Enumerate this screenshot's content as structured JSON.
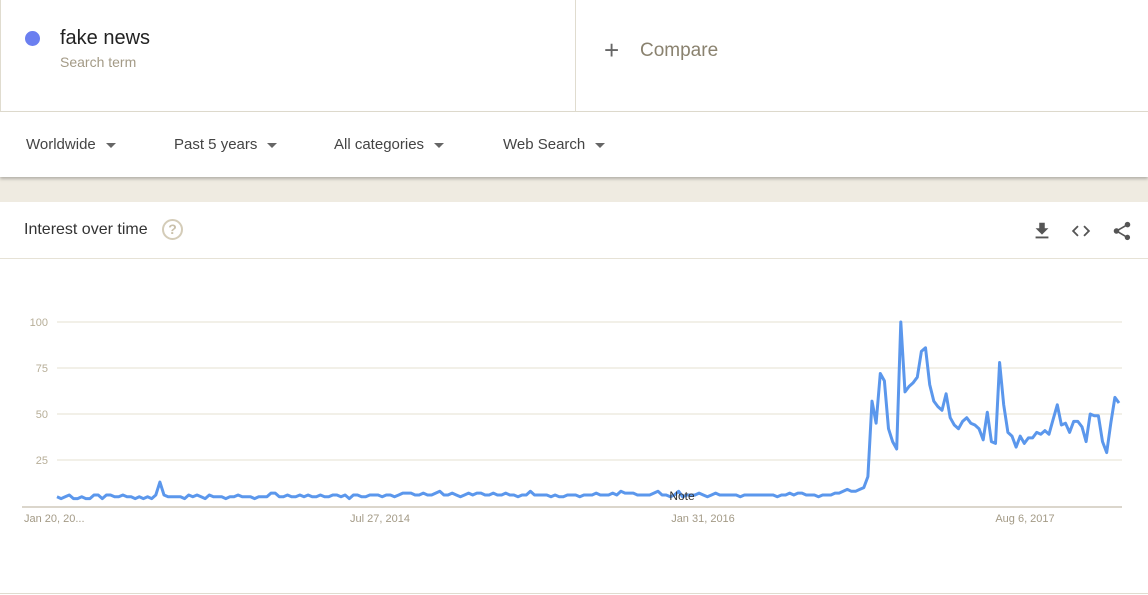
{
  "search_term": {
    "name": "fake news",
    "subtitle": "Search term",
    "color": "#6b7ff0"
  },
  "compare": {
    "icon": "plus-icon",
    "label": "Compare"
  },
  "filters": [
    {
      "label": "Worldwide"
    },
    {
      "label": "Past 5 years"
    },
    {
      "label": "All categories"
    },
    {
      "label": "Web Search"
    }
  ],
  "card": {
    "title": "Interest over time",
    "help_icon": "help-circle-icon",
    "actions": [
      "download-icon",
      "embed-code-icon",
      "share-icon"
    ]
  },
  "chart_data": {
    "type": "line",
    "title": "",
    "ylim": [
      0,
      100
    ],
    "yticks": [
      25,
      50,
      75,
      100
    ],
    "xtick_labels": [
      "Jan 20, 20...",
      "Jul 27, 2014",
      "Jan 31, 2016",
      "Aug 6, 2017"
    ],
    "annotation": "Note",
    "grid": true,
    "line_color": "#5b97ec",
    "x_start": "Jan 20, 2013",
    "interval": "weekly",
    "values": [
      5,
      4,
      5,
      6,
      4,
      4,
      5,
      4,
      4,
      6,
      6,
      4,
      6,
      6,
      5,
      5,
      6,
      5,
      5,
      4,
      5,
      4,
      5,
      4,
      6,
      13,
      6,
      5,
      5,
      5,
      5,
      4,
      6,
      5,
      6,
      5,
      4,
      6,
      5,
      5,
      5,
      4,
      5,
      5,
      6,
      5,
      5,
      5,
      4,
      5,
      5,
      5,
      7,
      7,
      5,
      5,
      6,
      5,
      5,
      6,
      5,
      6,
      5,
      5,
      6,
      5,
      5,
      6,
      6,
      5,
      6,
      4,
      6,
      6,
      5,
      5,
      6,
      6,
      6,
      5,
      6,
      6,
      5,
      6,
      7,
      7,
      7,
      6,
      6,
      7,
      6,
      6,
      7,
      8,
      6,
      6,
      7,
      6,
      5,
      6,
      7,
      6,
      7,
      7,
      6,
      6,
      7,
      6,
      6,
      7,
      6,
      6,
      5,
      6,
      6,
      8,
      6,
      6,
      6,
      6,
      5,
      6,
      5,
      5,
      6,
      6,
      6,
      5,
      6,
      6,
      6,
      7,
      6,
      6,
      6,
      7,
      6,
      8,
      7,
      7,
      7,
      6,
      6,
      6,
      6,
      7,
      8,
      6,
      6,
      5,
      6,
      8,
      5,
      6,
      6,
      6,
      7,
      6,
      5,
      6,
      7,
      6,
      6,
      6,
      6,
      6,
      5,
      6,
      6,
      6,
      6,
      6,
      6,
      6,
      6,
      5,
      6,
      6,
      7,
      6,
      7,
      7,
      6,
      6,
      6,
      5,
      6,
      6,
      6,
      7,
      7,
      8,
      9,
      8,
      8,
      9,
      10,
      16,
      57,
      45,
      72,
      68,
      42,
      35,
      31,
      100,
      62,
      65,
      67,
      70,
      84,
      86,
      66,
      57,
      54,
      52,
      61,
      48,
      44,
      42,
      46,
      48,
      45,
      44,
      42,
      36,
      51,
      35,
      34,
      78,
      55,
      40,
      38,
      32,
      38,
      34,
      37,
      37,
      40,
      39,
      41,
      39,
      47,
      55,
      44,
      45,
      40,
      46,
      46,
      43,
      35,
      50,
      49,
      49,
      35,
      29,
      45,
      59,
      56
    ]
  }
}
